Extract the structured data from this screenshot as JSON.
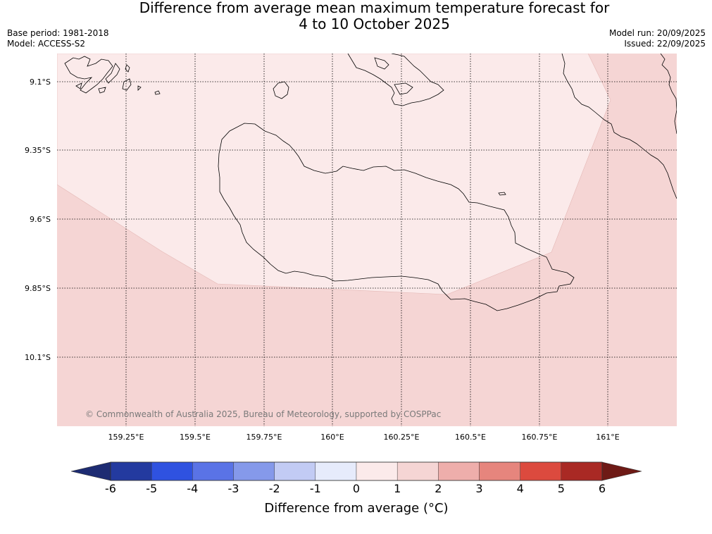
{
  "header": {
    "title_line1": "Difference from average mean maximum temperature forecast for",
    "title_line2": "4 to 10 October 2025",
    "base_period": "Base period: 1981-2018",
    "model": "Model: ACCESS-S2",
    "model_run": "Model run: 20/09/2025",
    "issued": "Issued: 22/09/2025"
  },
  "map": {
    "lat_labels": [
      "9.1°S",
      "9.35°S",
      "9.6°S",
      "9.85°S",
      "10.1°S"
    ],
    "lon_labels": [
      "159.25°E",
      "159.5°E",
      "159.75°E",
      "160°E",
      "160.25°E",
      "160.5°E",
      "160.75°E",
      "161°E"
    ],
    "credit": "© Commonwealth of Australia 2025, Bureau of Meteorology, supported by COSPPac",
    "anomaly_classes": [
      {
        "range": "0 to 1",
        "color": "#fbeaea"
      },
      {
        "range": "1 to 2",
        "color": "#f5d5d4"
      }
    ]
  },
  "colorbar": {
    "title": "Difference from average (°C)",
    "ticks": [
      "-6",
      "-5",
      "-4",
      "-3",
      "-2",
      "-1",
      "0",
      "1",
      "2",
      "3",
      "4",
      "5",
      "6"
    ],
    "colors": [
      "#233a9f",
      "#2f52e0",
      "#5a73e6",
      "#8599ea",
      "#c2cbf4",
      "#e6ebfb",
      "#fbeaea",
      "#f5d5d4",
      "#eeaeab",
      "#e6857d",
      "#dc4a3e",
      "#a92924"
    ],
    "extend_low_color": "#1d2b72",
    "extend_high_color": "#6e1a16"
  }
}
